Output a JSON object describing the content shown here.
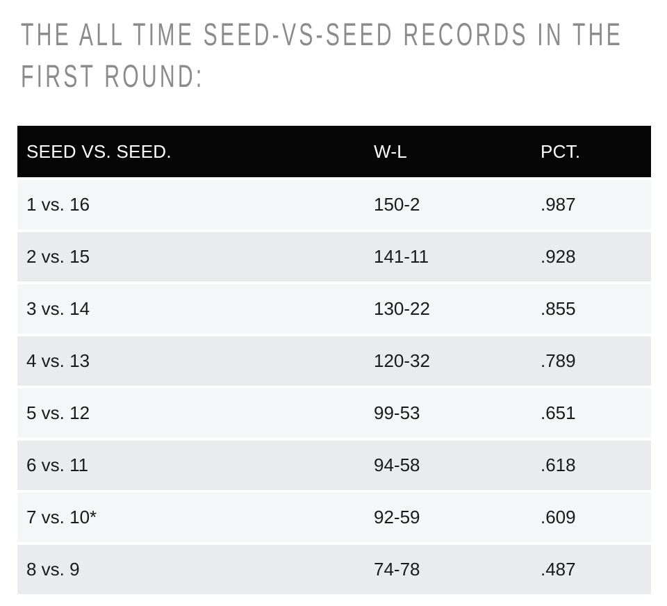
{
  "heading": {
    "line1": "THE ALL TIME SEED-VS-SEED RECORDS IN THE",
    "line2": "FIRST ROUND:"
  },
  "table": {
    "columns": [
      "SEED VS. SEED.",
      "W-L",
      "PCT."
    ],
    "rows": [
      {
        "matchup": "1 vs. 16",
        "wl": "150-2",
        "pct": ".987"
      },
      {
        "matchup": "2 vs. 15",
        "wl": "141-11",
        "pct": ".928"
      },
      {
        "matchup": "3 vs. 14",
        "wl": "130-22",
        "pct": ".855"
      },
      {
        "matchup": "4 vs. 13",
        "wl": "120-32",
        "pct": ".789"
      },
      {
        "matchup": "5 vs. 12",
        "wl": "99-53",
        "pct": ".651"
      },
      {
        "matchup": "6 vs. 11",
        "wl": "94-58",
        "pct": ".618"
      },
      {
        "matchup": "7 vs. 10*",
        "wl": "92-59",
        "pct": ".609"
      },
      {
        "matchup": "8 vs. 9",
        "wl": "74-78",
        "pct": ".487"
      }
    ]
  },
  "colors": {
    "heading_text": "#8b8b8b",
    "header_bg": "#050505",
    "header_text": "#ffffff",
    "row_light": "#f5f6f8",
    "row_dark": "#eaebee",
    "cell_text": "#1a1a1c",
    "page_bg": "#ffffff"
  },
  "chart_data": {
    "type": "table",
    "title": "THE ALL TIME SEED-VS-SEED RECORDS IN THE FIRST ROUND:",
    "columns": [
      "SEED VS. SEED.",
      "W-L",
      "PCT."
    ],
    "rows": [
      [
        "1 vs. 16",
        "150-2",
        ".987"
      ],
      [
        "2 vs. 15",
        "141-11",
        ".928"
      ],
      [
        "3 vs. 14",
        "130-22",
        ".855"
      ],
      [
        "4 vs. 13",
        "120-32",
        ".789"
      ],
      [
        "5 vs. 12",
        "99-53",
        ".651"
      ],
      [
        "6 vs. 11",
        "94-58",
        ".618"
      ],
      [
        "7 vs. 10*",
        "92-59",
        ".609"
      ],
      [
        "8 vs. 9",
        "74-78",
        ".487"
      ]
    ],
    "notes": "Alternating striped rows, black header band, left-aligned columns"
  }
}
